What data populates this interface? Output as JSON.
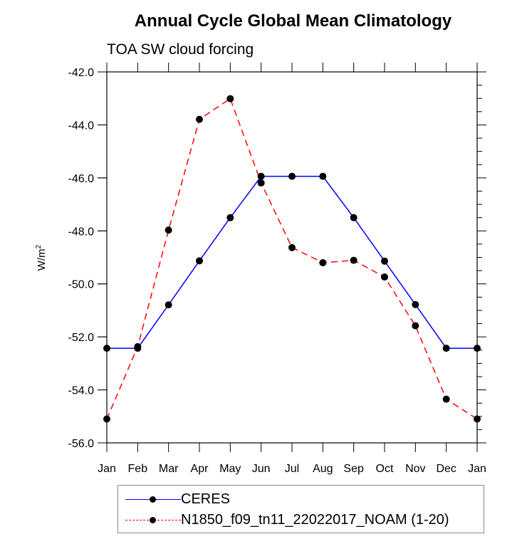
{
  "title": "Annual Cycle Global Mean Climatology",
  "subtitle": "TOA SW cloud forcing",
  "chart_data": {
    "type": "line",
    "title": "Annual Cycle Global Mean Climatology",
    "subtitle": "TOA SW cloud forcing",
    "xlabel": "",
    "ylabel": "W/m",
    "ylabel_superscript": "2",
    "categories": [
      "Jan",
      "Feb",
      "Mar",
      "Apr",
      "May",
      "Jun",
      "Jul",
      "Aug",
      "Sep",
      "Oct",
      "Nov",
      "Dec",
      "Jan"
    ],
    "ylim": [
      -56.0,
      -42.0
    ],
    "yticks": [
      "-42.0",
      "-44.0",
      "-46.0",
      "-48.0",
      "-50.0",
      "-52.0",
      "-54.0",
      "-56.0"
    ],
    "ytick_values": [
      -42,
      -44,
      -46,
      -48,
      -50,
      -52,
      -54,
      -56
    ],
    "grid": false,
    "legend_position": "bottom",
    "series": [
      {
        "name": "CERES",
        "color": "#0000ff",
        "style": "solid",
        "marker": "filled-circle",
        "values": [
          -52.43,
          -52.43,
          -50.79,
          -49.13,
          -47.5,
          -45.94,
          -45.94,
          -45.94,
          -47.5,
          -49.14,
          -50.78,
          -52.43,
          -52.43
        ]
      },
      {
        "name": "N1850_f09_tn11_22022017_NOAM (1-20)",
        "color": "#ff0000",
        "style": "dashed",
        "marker": "filled-circle",
        "values": [
          -55.1,
          -52.37,
          -47.97,
          -43.79,
          -43.01,
          -46.19,
          -48.63,
          -49.2,
          -49.11,
          -49.74,
          -51.58,
          -54.35,
          -55.1
        ]
      }
    ]
  }
}
